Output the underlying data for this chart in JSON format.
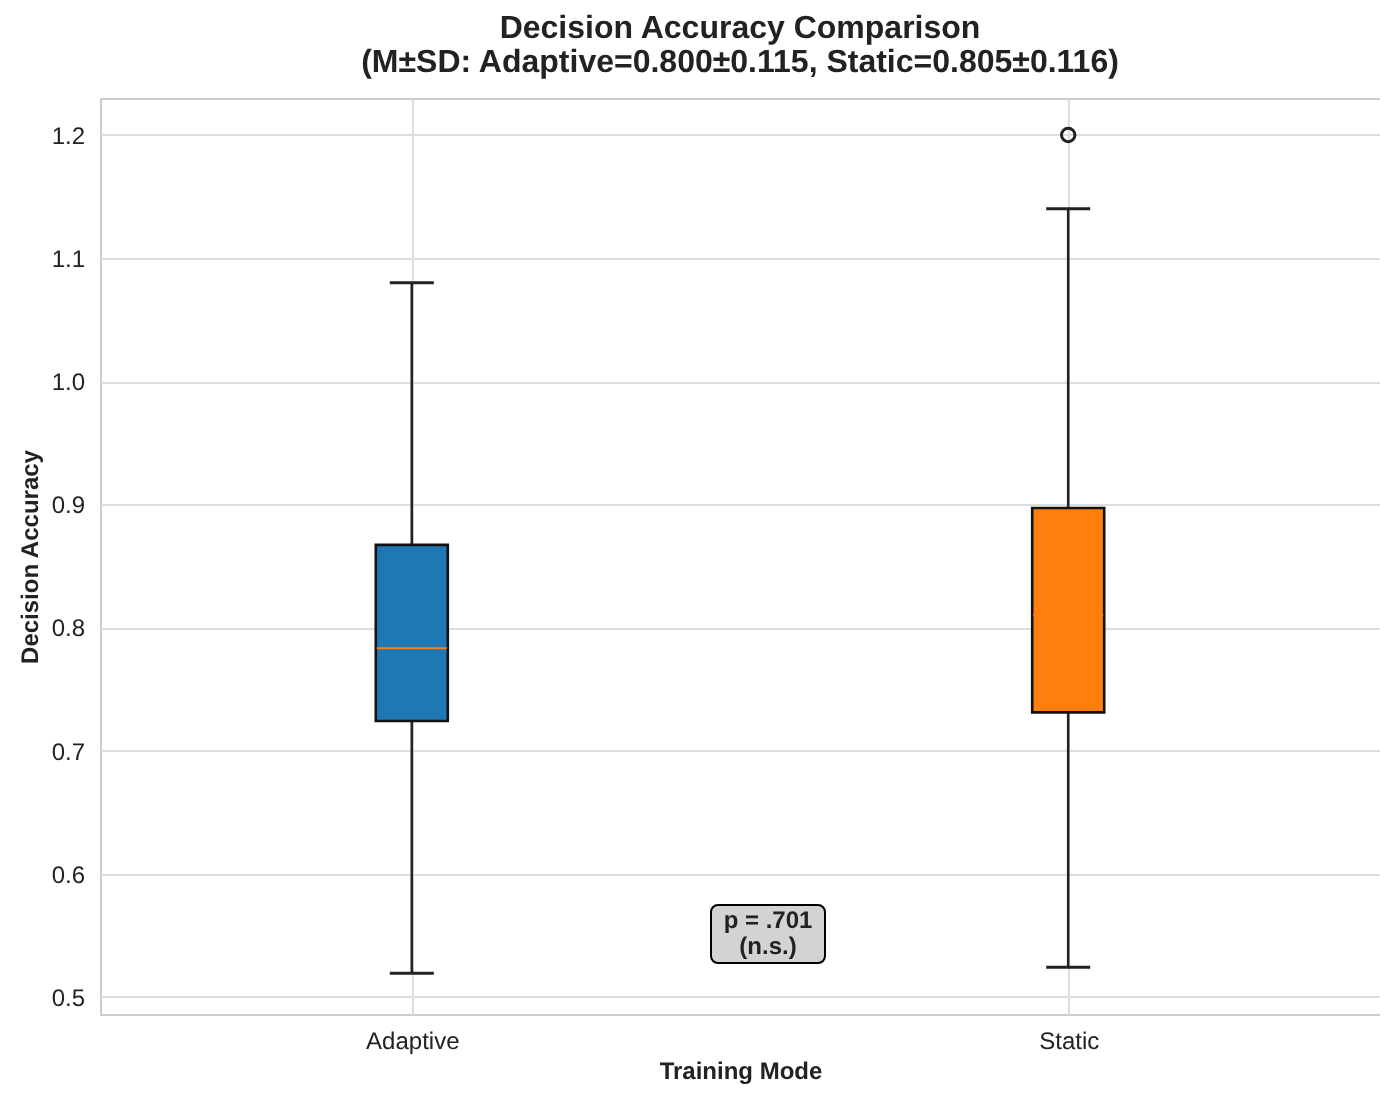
{
  "chart_data": {
    "type": "box",
    "title": "Decision Accuracy Comparison",
    "subtitle": "(M±SD: Adaptive=0.800±0.115, Static=0.805±0.116)",
    "xlabel": "Training Mode",
    "ylabel": "Decision Accuracy",
    "categories": [
      "Adaptive",
      "Static"
    ],
    "colors": [
      "#1f77b4",
      "#ff7f0e"
    ],
    "boxes": [
      {
        "low": 0.519,
        "q1": 0.724,
        "median": 0.783,
        "q3": 0.867,
        "high": 1.08
      },
      {
        "low": 0.524,
        "q1": 0.731,
        "median": 0.81,
        "q3": 0.897,
        "high": 1.14,
        "outliers": [
          1.2
        ]
      }
    ],
    "ylim": [
      0.486,
      1.23
    ],
    "yticks": [
      0.5,
      0.6,
      0.7,
      0.8,
      0.9,
      {
        "value": 1.0,
        "label": "1.0"
      },
      1.1,
      1.2
    ],
    "grid": true,
    "annotations": [
      "p = .701\n(n.s.)"
    ]
  }
}
